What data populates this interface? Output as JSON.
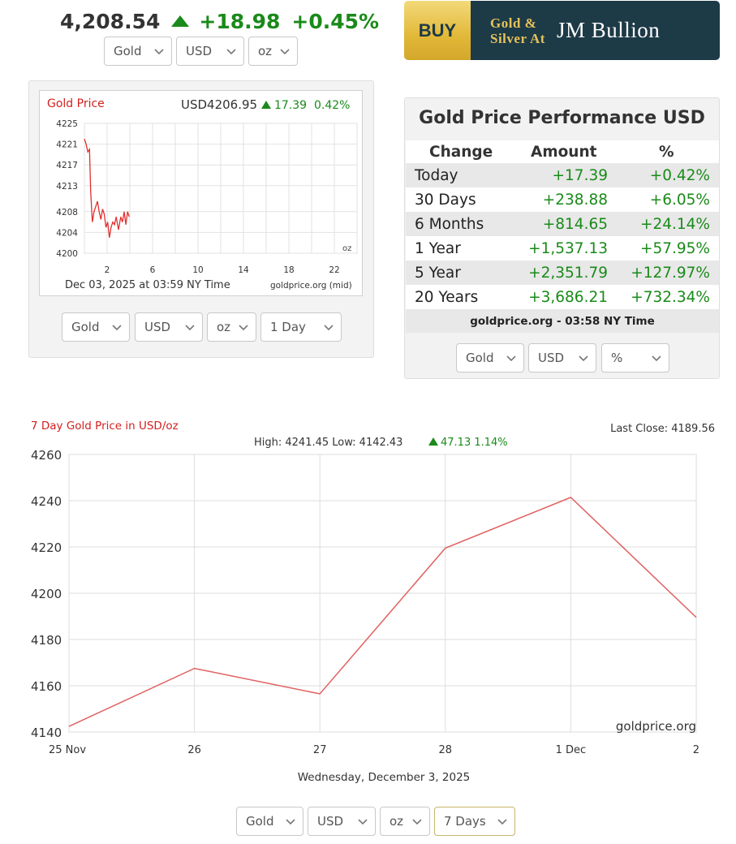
{
  "header": {
    "price": "4,208.54",
    "change": "+18.98",
    "change_pct": "+0.45%",
    "up_color": "#1a8a1a",
    "selectors": {
      "metal": "Gold",
      "currency": "USD",
      "unit": "oz"
    }
  },
  "banner": {
    "buy": "BUY",
    "line1": "Gold &",
    "line2": "Silver At",
    "brand": "JM Bullion",
    "brand_color": "#1d3a47",
    "gold_color": "#e2b838"
  },
  "mini_chart": {
    "label": "Gold Price",
    "quote": "USD4206.95",
    "change": "17.39",
    "change_pct": "0.42%",
    "unit": "oz",
    "timestamp": "Dec 03, 2025 at 03:59 NY Time",
    "source": "goldprice.org (mid)",
    "selectors": {
      "metal": "Gold",
      "currency": "USD",
      "unit": "oz",
      "range": "1 Day"
    }
  },
  "performance": {
    "title": "Gold Price Performance USD",
    "headers": [
      "Change",
      "Amount",
      "%"
    ],
    "rows": [
      {
        "period": "Today",
        "amount": "+17.39",
        "pct": "+0.42%"
      },
      {
        "period": "30 Days",
        "amount": "+238.88",
        "pct": "+6.05%"
      },
      {
        "period": "6 Months",
        "amount": "+814.65",
        "pct": "+24.14%"
      },
      {
        "period": "1 Year",
        "amount": "+1,537.13",
        "pct": "+57.95%"
      },
      {
        "period": "5 Year",
        "amount": "+2,351.79",
        "pct": "+127.97%"
      },
      {
        "period": "20 Years",
        "amount": "+3,686.21",
        "pct": "+732.34%"
      }
    ],
    "source": "goldprice.org - 03:58 NY Time",
    "selectors": {
      "metal": "Gold",
      "currency": "USD",
      "mode": "%"
    }
  },
  "big_chart": {
    "title": "7 Day Gold Price in USD/oz",
    "last_close": "Last Close: 4189.56",
    "summary": "High: 4241.45 Low: 4142.43",
    "summary_change": "47.13 1.14%",
    "watermark": "goldprice.org",
    "date_label": "Wednesday, December 3, 2025",
    "selectors": {
      "metal": "Gold",
      "currency": "USD",
      "unit": "oz",
      "range": "7 Days"
    }
  },
  "chart_data": [
    {
      "type": "line",
      "title": "Gold Price",
      "x_ticks": [
        "2",
        "6",
        "10",
        "14",
        "18",
        "22"
      ],
      "xlim": [
        0,
        24
      ],
      "ylim": [
        4200,
        4225
      ],
      "y_ticks": [
        4200,
        4204,
        4208,
        4213,
        4217,
        4221,
        4225
      ],
      "series_color": "#e03030",
      "x": [
        0.0,
        0.15,
        0.3,
        0.45,
        0.55,
        0.7,
        0.85,
        1.0,
        1.15,
        1.3,
        1.45,
        1.6,
        1.75,
        1.9,
        2.05,
        2.2,
        2.35,
        2.5,
        2.65,
        2.8,
        3.0,
        3.2,
        3.35,
        3.5,
        3.65,
        3.8,
        3.95
      ],
      "y": [
        4222,
        4221,
        4219.5,
        4220,
        4212,
        4206,
        4208,
        4209,
        4210,
        4208,
        4206.5,
        4208.5,
        4207.5,
        4205,
        4206,
        4203,
        4205,
        4206,
        4205.5,
        4207,
        4204.5,
        4207,
        4206,
        4208,
        4205.5,
        4208,
        4207
      ]
    },
    {
      "type": "line",
      "title": "7 Day Gold Price in USD/oz",
      "categories": [
        "25 Nov",
        "26",
        "27",
        "28",
        "1 Dec",
        "2"
      ],
      "ylim": [
        4140,
        4260
      ],
      "y_ticks": [
        4140,
        4160,
        4180,
        4200,
        4220,
        4240,
        4260
      ],
      "series_color": "#e06060",
      "x": [
        0,
        1,
        2,
        3,
        4,
        5
      ],
      "y": [
        4142.43,
        4167.5,
        4156.5,
        4219.5,
        4241.45,
        4189.56
      ]
    }
  ]
}
